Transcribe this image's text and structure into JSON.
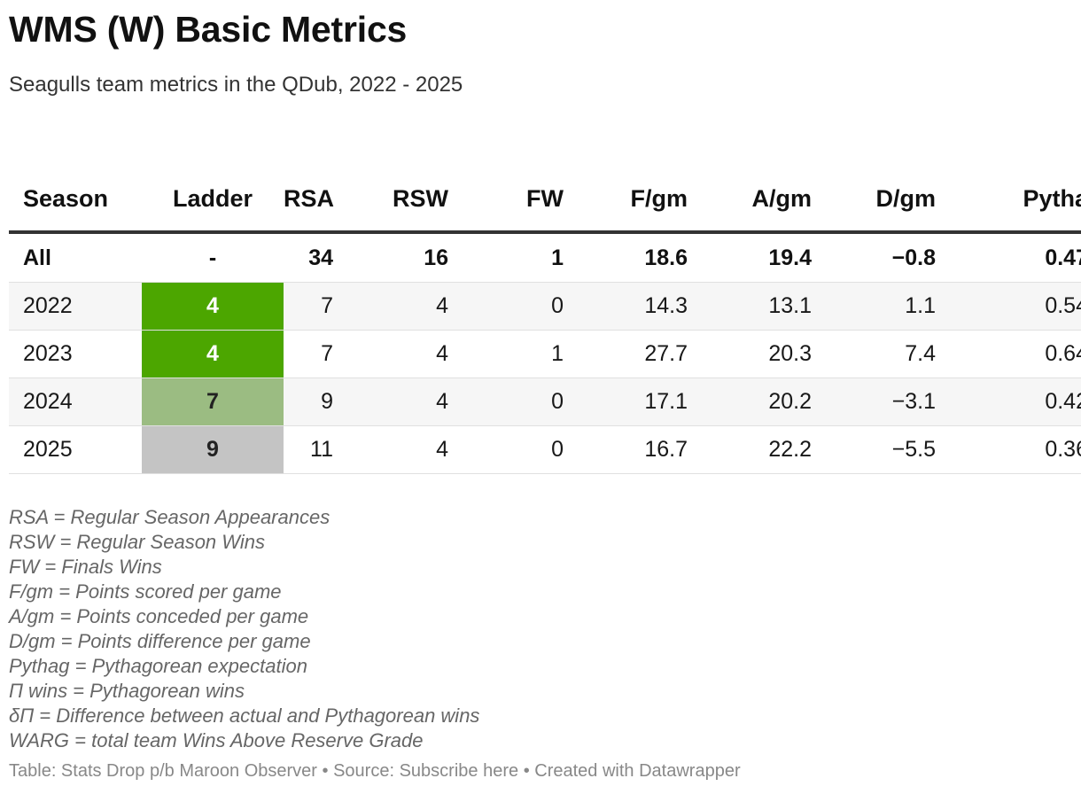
{
  "header": {
    "title": "WMS (W) Basic Metrics",
    "subtitle": "Seagulls team metrics in the QDub, 2022 - 2025"
  },
  "table": {
    "columns": [
      "Season",
      "Ladder",
      "RSA",
      "RSW",
      "FW",
      "F/gm",
      "A/gm",
      "D/gm",
      "Pytha"
    ],
    "total_row": {
      "season": "All",
      "ladder": "-",
      "rsa": "34",
      "rsw": "16",
      "fw": "1",
      "f_gm": "18.6",
      "a_gm": "19.4",
      "d_gm": "−0.8",
      "pytha": "0.47"
    },
    "rows": [
      {
        "season": "2022",
        "ladder": "4",
        "ladder_color": "#4ca600",
        "ladder_text_color": "#ffffff",
        "rsa": "7",
        "rsw": "4",
        "fw": "0",
        "f_gm": "14.3",
        "a_gm": "13.1",
        "d_gm": "1.1",
        "pytha": "0.54"
      },
      {
        "season": "2023",
        "ladder": "4",
        "ladder_color": "#4ca600",
        "ladder_text_color": "#ffffff",
        "rsa": "7",
        "rsw": "4",
        "fw": "1",
        "f_gm": "27.7",
        "a_gm": "20.3",
        "d_gm": "7.4",
        "pytha": "0.64"
      },
      {
        "season": "2024",
        "ladder": "7",
        "ladder_color": "#9bbc82",
        "ladder_text_color": "#222222",
        "rsa": "9",
        "rsw": "4",
        "fw": "0",
        "f_gm": "17.1",
        "a_gm": "20.2",
        "d_gm": "−3.1",
        "pytha": "0.42"
      },
      {
        "season": "2025",
        "ladder": "9",
        "ladder_color": "#c4c4c4",
        "ladder_text_color": "#222222",
        "rsa": "11",
        "rsw": "4",
        "fw": "0",
        "f_gm": "16.7",
        "a_gm": "22.2",
        "d_gm": "−5.5",
        "pytha": "0.36"
      }
    ]
  },
  "notes": [
    "RSA = Regular Season Appearances",
    "RSW = Regular Season Wins",
    "FW = Finals Wins",
    "F/gm = Points scored per game",
    "A/gm = Points conceded per game",
    "D/gm = Points difference per game",
    "Pythag = Pythagorean expectation",
    "Π wins = Pythagorean wins",
    "δΠ = Difference between actual and Pythagorean wins",
    "WARG = total team Wins Above Reserve Grade"
  ],
  "footer": {
    "table_credit": "Table: Stats Drop p/b Maroon Observer",
    "separator": "•",
    "source_prefix": "Source:",
    "source_link": "Subscribe here",
    "created_with": "Created with Datawrapper"
  }
}
